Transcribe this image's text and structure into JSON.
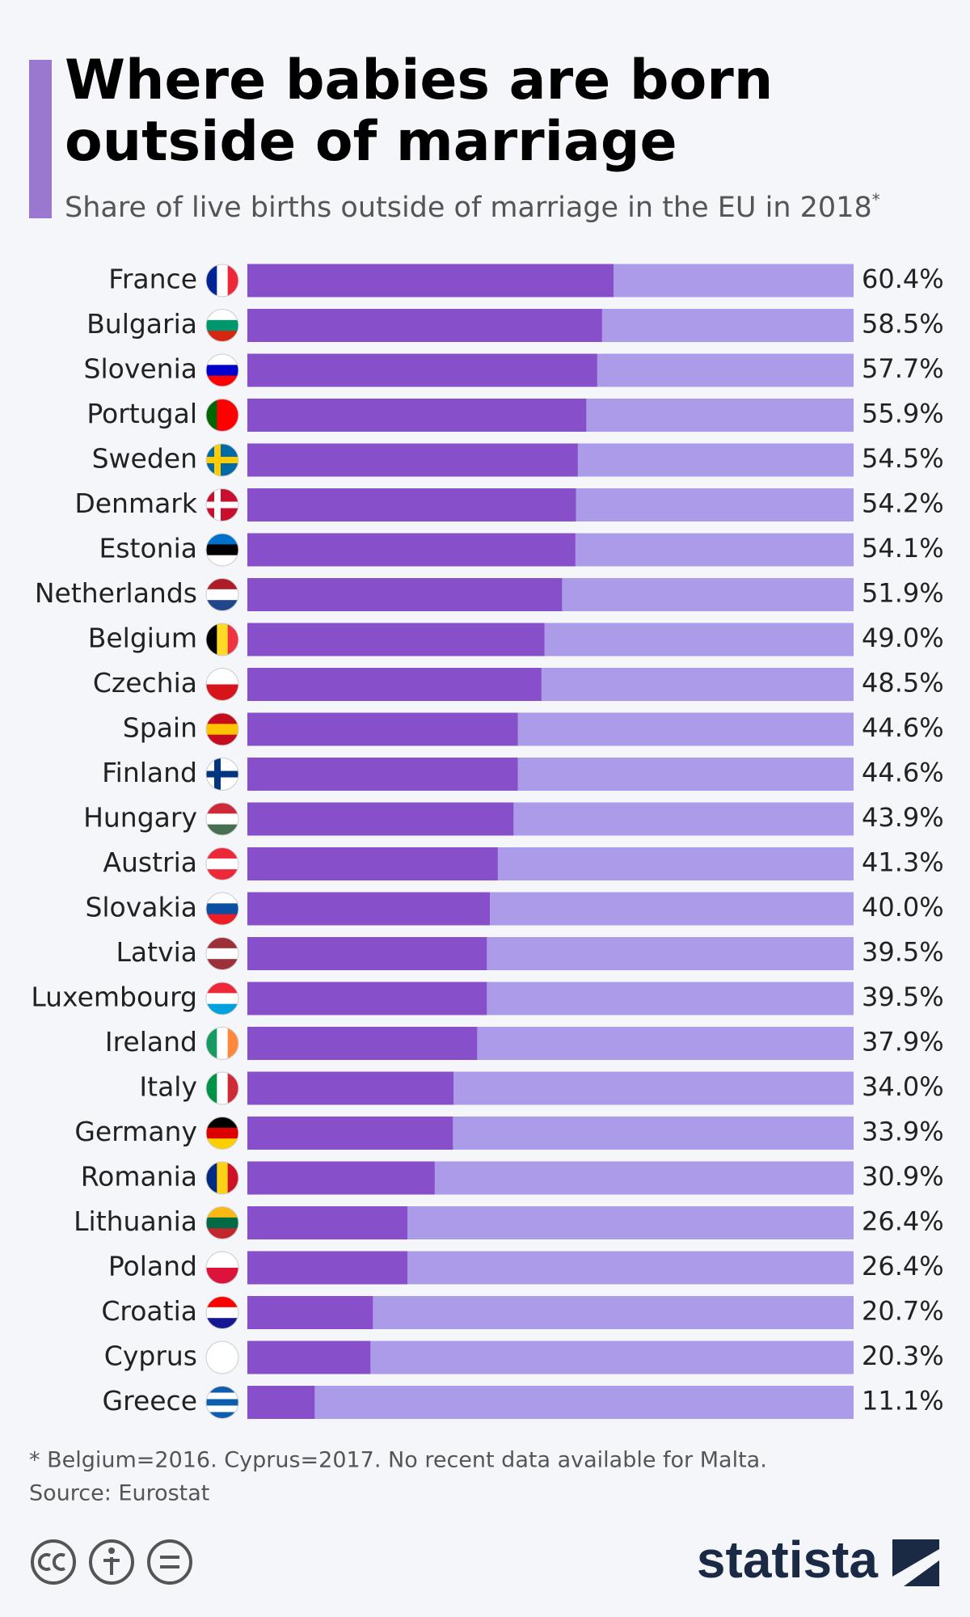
{
  "chart_data": {
    "type": "bar",
    "orientation": "horizontal",
    "title_lines": [
      "Where babies are born",
      "outside of marriage"
    ],
    "subtitle": "Share of live births outside of marriage in the EU in 2018",
    "subtitle_mark": "*",
    "categories": [
      "France",
      "Bulgaria",
      "Slovenia",
      "Portugal",
      "Sweden",
      "Denmark",
      "Estonia",
      "Netherlands",
      "Belgium",
      "Czechia",
      "Spain",
      "Finland",
      "Hungary",
      "Austria",
      "Slovakia",
      "Latvia",
      "Luxembourg",
      "Ireland",
      "Italy",
      "Germany",
      "Romania",
      "Lithuania",
      "Poland",
      "Croatia",
      "Cyprus",
      "Greece"
    ],
    "values": [
      60.4,
      58.5,
      57.7,
      55.9,
      54.5,
      54.2,
      54.1,
      51.9,
      49.0,
      48.5,
      44.6,
      44.6,
      43.9,
      41.3,
      40.0,
      39.5,
      39.5,
      37.9,
      34.0,
      33.9,
      30.9,
      26.4,
      26.4,
      20.7,
      20.3,
      11.1
    ],
    "value_labels": [
      "60.4%",
      "58.5%",
      "57.7%",
      "55.9%",
      "54.5%",
      "54.2%",
      "54.1%",
      "51.9%",
      "49.0%",
      "48.5%",
      "44.6%",
      "44.6%",
      "43.9%",
      "41.3%",
      "40.0%",
      "39.5%",
      "39.5%",
      "37.9%",
      "34.0%",
      "33.9%",
      "30.9%",
      "26.4%",
      "26.4%",
      "20.7%",
      "20.3%",
      "11.1%"
    ],
    "xlim": [
      0,
      100
    ],
    "color": "#874fc9",
    "track_color": "#ab9be8",
    "note": "* Belgium=2016. Cyprus=2017. No recent data available for Malta.",
    "source": "Source: Eurostat",
    "brand": "statista"
  }
}
